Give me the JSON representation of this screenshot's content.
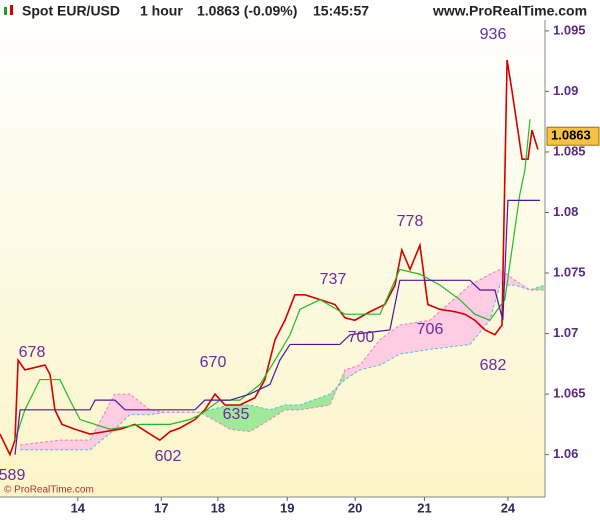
{
  "header": {
    "symbol": "Spot EUR/USD",
    "period": "1 hour",
    "quote": "1.0863 (-0.09%)",
    "time": "15:45:57",
    "site": "www.ProRealTime.com"
  },
  "footer": "© ProRealTime.com",
  "chart_data": {
    "type": "line",
    "last_price": 1.0863,
    "last_price_color": "#f5c242",
    "ylim": [
      1.0565,
      1.0959
    ],
    "yticks": [
      1.06,
      1.065,
      1.07,
      1.075,
      1.08,
      1.085,
      1.09,
      1.095
    ],
    "xlim": [
      0,
      192.6
    ],
    "xticks": [
      {
        "value": 27.5,
        "label": "14"
      },
      {
        "value": 57,
        "label": "17"
      },
      {
        "value": 77,
        "label": "18"
      },
      {
        "value": 101.5,
        "label": "19"
      },
      {
        "value": 125.5,
        "label": "20"
      },
      {
        "value": 150,
        "label": "21"
      },
      {
        "value": 179.5,
        "label": "24"
      }
    ],
    "series": [
      {
        "color": "#d40000",
        "width": 1.6,
        "x": [
          0,
          3.5,
          5.3,
          6.4,
          8.8,
          12.4,
          15.9,
          17.7,
          19.4,
          21.9,
          26.5,
          31.8,
          37.1,
          42.4,
          47.7,
          53,
          56.5,
          60.1,
          63.6,
          68.9,
          72.4,
          76,
          79.5,
          84.8,
          90.1,
          93.6,
          97.2,
          100.7,
          104.2,
          107.8,
          113.1,
          118.4,
          121.9,
          125.4,
          130.7,
          136,
          139.6,
          142,
          144.9,
          148.4,
          151.2,
          155.5,
          160.8,
          164.3,
          167.8,
          171.4,
          174.9,
          177.4,
          179.2,
          180.9,
          183,
          184.5,
          186.6,
          188,
          190.1
        ],
        "values": [
          1.0617,
          1.06,
          1.0612,
          1.0678,
          1.067,
          1.0672,
          1.0674,
          1.0666,
          1.0637,
          1.0625,
          1.0621,
          1.0617,
          1.0619,
          1.0621,
          1.0625,
          1.0617,
          1.0612,
          1.0619,
          1.0622,
          1.0629,
          1.0637,
          1.065,
          1.0641,
          1.0641,
          1.0647,
          1.0662,
          1.0695,
          1.0711,
          1.0732,
          1.0732,
          1.0728,
          1.0724,
          1.0713,
          1.0711,
          1.0718,
          1.0724,
          1.074,
          1.0769,
          1.0753,
          1.0773,
          1.0724,
          1.072,
          1.0718,
          1.0716,
          1.0711,
          1.0703,
          1.0699,
          1.0707,
          1.0926,
          1.0901,
          1.0868,
          1.0844,
          1.0844,
          1.0868,
          1.0852
        ]
      },
      {
        "color": "#22bb22",
        "width": 1.2,
        "x": [
          5.3,
          8.8,
          14.1,
          21.2,
          24.7,
          28.3,
          38.9,
          49.5,
          60.1,
          67.1,
          70.7,
          77.7,
          84.8,
          91.9,
          97.2,
          102.5,
          106,
          113.1,
          121.9,
          134.3,
          141.3,
          148.4,
          155.5,
          162.5,
          167.8,
          173.1,
          178.4,
          183.7,
          185.5,
          187.3
        ],
        "values": [
          1.0612,
          1.0637,
          1.0662,
          1.0662,
          1.0645,
          1.0629,
          1.0621,
          1.0625,
          1.0625,
          1.0629,
          1.0633,
          1.0645,
          1.0645,
          1.0658,
          1.0678,
          1.0699,
          1.072,
          1.0728,
          1.0716,
          1.0716,
          1.0753,
          1.0749,
          1.074,
          1.0728,
          1.0716,
          1.0711,
          1.0728,
          1.0815,
          1.0835,
          1.0877
        ]
      },
      {
        "color": "#4b16a0",
        "width": 1.2,
        "x": [
          5.3,
          7.1,
          31.8,
          33.6,
          40.6,
          44.2,
          68.9,
          72.4,
          81.3,
          88.3,
          95.4,
          98.9,
          102.5,
          120.1,
          123.7,
          137.8,
          141.3,
          166.1,
          169.6,
          174.9,
          177.7,
          179.5,
          190.8
        ],
        "values": [
          1.06,
          1.0637,
          1.0637,
          1.0645,
          1.0645,
          1.0637,
          1.0637,
          1.0645,
          1.0645,
          1.065,
          1.0658,
          1.0678,
          1.0691,
          1.0691,
          1.0699,
          1.0703,
          1.0744,
          1.0744,
          1.0736,
          1.0736,
          1.0711,
          1.081,
          1.081
        ]
      }
    ],
    "cloud": {
      "x": [
        7.1,
        21.2,
        31.8,
        40.6,
        45.9,
        53,
        58.3,
        70.7,
        81.3,
        88.3,
        95.4,
        100.7,
        106,
        116.6,
        121.9,
        127.2,
        134.3,
        141.3,
        151.9,
        166.1,
        173.1,
        176.7,
        182,
        187.3,
        192.6
      ],
      "span_a": [
        1.0604,
        1.0604,
        1.0604,
        1.0621,
        1.0633,
        1.0633,
        1.0635,
        1.0635,
        1.0641,
        1.0641,
        1.0637,
        1.0641,
        1.0641,
        1.065,
        1.0662,
        1.067,
        1.0674,
        1.0683,
        1.0687,
        1.0691,
        1.0711,
        1.074,
        1.074,
        1.0736,
        1.074
      ],
      "span_b": [
        1.0608,
        1.0612,
        1.0612,
        1.065,
        1.065,
        1.0637,
        1.0635,
        1.0635,
        1.0621,
        1.0619,
        1.0629,
        1.0637,
        1.0637,
        1.0641,
        1.067,
        1.0674,
        1.0695,
        1.0707,
        1.0711,
        1.074,
        1.0749,
        1.0753,
        1.0744,
        1.0736,
        1.0736
      ],
      "up_color": "#8ee68e",
      "down_color": "#ffc4e4",
      "a_color": "#4cc0e0",
      "b_color": "#f07cc0"
    },
    "annotations": [
      "936",
      "778",
      "737",
      "700",
      "706",
      "682",
      "678",
      "670",
      "635",
      "602",
      "589"
    ],
    "annotation_color": "#6a2aa0"
  }
}
